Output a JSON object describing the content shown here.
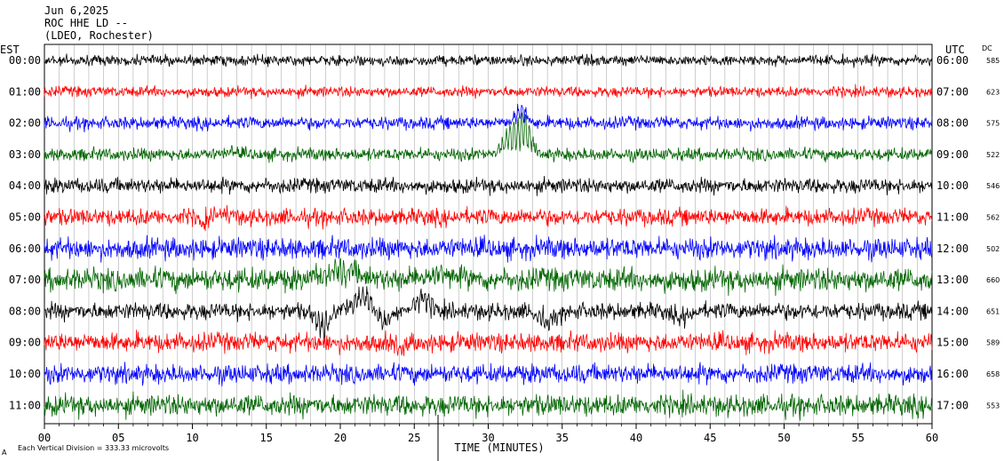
{
  "header": {
    "date": "Jun 6,2025",
    "station": "ROC HHE LD --",
    "network": "(LDEO, Rochester)"
  },
  "footer": {
    "scale_note": "Each Vertical Division =  333.33 microvolts",
    "corner_mark": "A"
  },
  "colors": {
    "cycle": [
      "#000000",
      "#ff0000",
      "#0000ff",
      "#006400"
    ],
    "grid": "#000000"
  },
  "chart_data": {
    "type": "line",
    "title": "",
    "xlabel": "TIME (MINUTES)",
    "left_axis_label": "EST",
    "right_axis_label": "UTC",
    "dc_label": "DC",
    "xlim": [
      0,
      60
    ],
    "x_ticks": [
      "00",
      "05",
      "10",
      "15",
      "20",
      "25",
      "30",
      "35",
      "40",
      "45",
      "50",
      "55",
      "60"
    ],
    "grid": true,
    "series": [
      {
        "est": "00:00",
        "utc": "06:00",
        "dc": "585",
        "color": "#000000"
      },
      {
        "est": "01:00",
        "utc": "07:00",
        "dc": "623",
        "color": "#ff0000"
      },
      {
        "est": "02:00",
        "utc": "08:00",
        "dc": "575",
        "color": "#0000ff"
      },
      {
        "est": "03:00",
        "utc": "09:00",
        "dc": "522",
        "color": "#006400"
      },
      {
        "est": "04:00",
        "utc": "10:00",
        "dc": "546",
        "color": "#000000"
      },
      {
        "est": "05:00",
        "utc": "11:00",
        "dc": "562",
        "color": "#ff0000"
      },
      {
        "est": "06:00",
        "utc": "12:00",
        "dc": "502",
        "color": "#0000ff"
      },
      {
        "est": "07:00",
        "utc": "13:00",
        "dc": "660",
        "color": "#006400"
      },
      {
        "est": "08:00",
        "utc": "14:00",
        "dc": "651",
        "color": "#000000"
      },
      {
        "est": "09:00",
        "utc": "15:00",
        "dc": "589",
        "color": "#ff0000"
      },
      {
        "est": "10:00",
        "utc": "16:00",
        "dc": "658",
        "color": "#0000ff"
      },
      {
        "est": "11:00",
        "utc": "17:00",
        "dc": "553",
        "color": "#006400"
      }
    ]
  }
}
